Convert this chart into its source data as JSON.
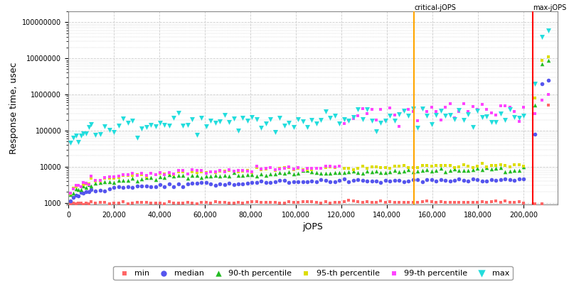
{
  "xlabel": "jOPS",
  "ylabel": "Response time, usec",
  "xlim": [
    0,
    215000
  ],
  "ylim_log": [
    900,
    200000000
  ],
  "critical_jops": 152000,
  "max_jops": 204000,
  "background_color": "#ffffff",
  "grid_color": "#cccccc",
  "legend_labels": [
    "min",
    "median",
    "90-th percentile",
    "95-th percentile",
    "99-th percentile",
    "max"
  ],
  "series_colors": [
    "#ff6666",
    "#5555ee",
    "#22bb22",
    "#dddd00",
    "#ff44ff",
    "#22dddd"
  ],
  "series_markers": [
    "s",
    "o",
    "^",
    "s",
    "s",
    "v"
  ],
  "series_marker_sizes": [
    3,
    4,
    4,
    3,
    3,
    5
  ],
  "ytick_vals": [
    1000,
    10000,
    100000,
    1000000,
    10000000,
    100000000
  ],
  "ytick_labels": [
    "1000",
    "10000",
    "100000",
    "1000000",
    "10000000",
    "100000000"
  ],
  "xtick_vals": [
    0,
    20000,
    40000,
    60000,
    80000,
    100000,
    120000,
    140000,
    160000,
    180000,
    200000
  ],
  "xtick_labels": [
    "0",
    "20,000",
    "40,000",
    "60,000",
    "80,000",
    "100,000",
    "120,000",
    "140,000",
    "160,000",
    "180,000",
    "200,000"
  ]
}
